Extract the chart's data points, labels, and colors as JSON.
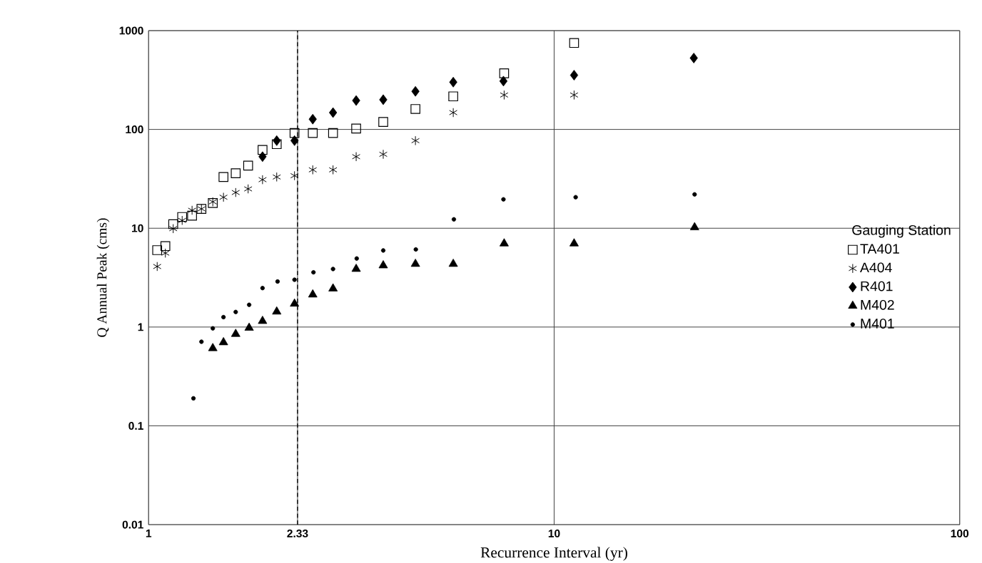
{
  "chart_data": {
    "type": "scatter",
    "xlabel": "Recurrence Interval (yr)",
    "ylabel": "Q Annual Peak (cms)",
    "legend_title": "Gauging Station",
    "log": "xy",
    "grid": true,
    "legend": "right",
    "xlim": [
      1,
      100
    ],
    "xticks": [
      1,
      2.33,
      10,
      100
    ],
    "ylim": [
      0.01,
      1000
    ],
    "yticks": [
      0.01,
      0.1,
      1,
      10,
      100,
      1000
    ],
    "ref_lines": [
      {
        "axis": "x",
        "value": 2.33,
        "line_style": "dashed",
        "color": "#000000"
      }
    ],
    "series": [
      {
        "name": "TA401",
        "color": "#000000",
        "marker": "square",
        "x": [
          1.05,
          1.1,
          1.15,
          1.21,
          1.28,
          1.35,
          1.44,
          1.53,
          1.64,
          1.76,
          1.91,
          2.07,
          2.29,
          2.54,
          2.85,
          3.25,
          3.79,
          4.55,
          5.64,
          7.53,
          11.2
        ],
        "values": [
          6,
          6.6,
          11,
          13,
          13.4,
          15.7,
          18,
          33,
          36,
          43,
          62,
          71,
          92,
          92,
          92,
          102,
          119,
          161,
          216,
          370,
          750
        ]
      },
      {
        "name": "A404",
        "color": "#000000",
        "marker": "cross",
        "x": [
          1.05,
          1.1,
          1.15,
          1.21,
          1.28,
          1.35,
          1.44,
          1.53,
          1.64,
          1.76,
          1.91,
          2.07,
          2.29,
          2.54,
          2.85,
          3.25,
          3.79,
          4.55,
          5.64,
          7.53,
          11.2
        ],
        "values": [
          4.1,
          5.6,
          9.9,
          12,
          15.2,
          15.7,
          18.5,
          20.6,
          23,
          25,
          31,
          33,
          34,
          39,
          39,
          53,
          56,
          77,
          148,
          223,
          223
        ]
      },
      {
        "name": "R401",
        "color": "#000000",
        "marker": "diamond",
        "x": [
          1.91,
          2.07,
          2.29,
          2.54,
          2.85,
          3.25,
          3.79,
          4.55,
          5.64,
          7.5,
          11.2,
          22.1
        ],
        "values": [
          53,
          77,
          77,
          127,
          148,
          196,
          200,
          243,
          301,
          308,
          354,
          528
        ]
      },
      {
        "name": "M402",
        "color": "#000000",
        "marker": "triangle",
        "x": [
          1.44,
          1.53,
          1.64,
          1.77,
          1.91,
          2.07,
          2.29,
          2.54,
          2.85,
          3.25,
          3.79,
          4.55,
          5.64,
          7.53,
          11.2,
          22.2
        ],
        "values": [
          0.61,
          0.7,
          0.85,
          0.98,
          1.15,
          1.43,
          1.72,
          2.13,
          2.45,
          3.87,
          4.2,
          4.35,
          4.35,
          7,
          7,
          10.2
        ]
      },
      {
        "name": "M401",
        "color": "#000000",
        "marker": "circle",
        "x": [
          1.29,
          1.35,
          1.44,
          1.53,
          1.64,
          1.77,
          1.91,
          2.08,
          2.29,
          2.55,
          2.85,
          3.26,
          3.79,
          4.56,
          5.66,
          7.5,
          11.3,
          22.2
        ],
        "values": [
          0.19,
          0.71,
          0.97,
          1.26,
          1.42,
          1.68,
          2.48,
          2.89,
          3.01,
          3.58,
          3.87,
          4.94,
          5.96,
          6.1,
          12.3,
          19.6,
          20.6,
          22
        ]
      }
    ]
  }
}
